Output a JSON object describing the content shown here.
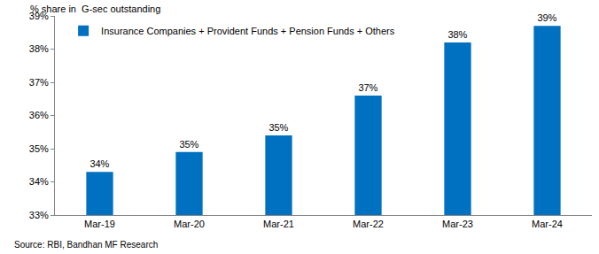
{
  "chart_data": {
    "type": "bar",
    "y_label": "% share in  G-sec outstanding",
    "source": "Source: RBI, Bandhan MF Research",
    "categories": [
      "Mar-19",
      "Mar-20",
      "Mar-21",
      "Mar-22",
      "Mar-23",
      "Mar-24"
    ],
    "series": [
      {
        "name": "Insurance Companies + Provident Funds + Pension Funds + Others",
        "color": "#0070c0",
        "values": [
          34.3,
          34.9,
          35.4,
          36.6,
          38.2,
          38.7
        ],
        "value_labels": [
          "34%",
          "35%",
          "35%",
          "37%",
          "38%",
          "39%"
        ]
      }
    ],
    "ylim": [
      33,
      39
    ],
    "yticks": [
      {
        "value": 33,
        "label": "33%"
      },
      {
        "value": 34,
        "label": "34%"
      },
      {
        "value": 35,
        "label": "35%"
      },
      {
        "value": 36,
        "label": "36%"
      },
      {
        "value": 37,
        "label": "37%"
      },
      {
        "value": 38,
        "label": "38%"
      },
      {
        "value": 39,
        "label": "39%"
      }
    ],
    "grid": false,
    "legend": "top-left",
    "data_labels": true
  }
}
